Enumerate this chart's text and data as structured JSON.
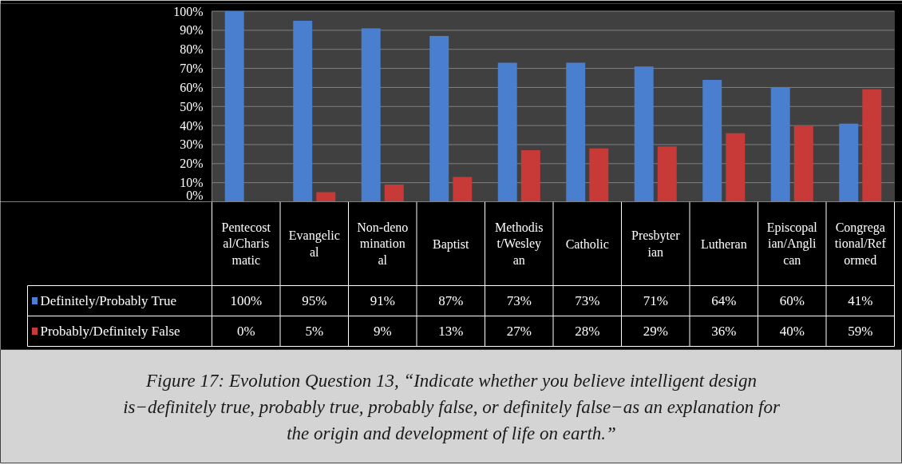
{
  "chart_data": {
    "type": "bar",
    "categories": [
      "Pentecostal/Charismatic",
      "Evangelical",
      "Non-denominational",
      "Baptist",
      "Methodist/Wesleyan",
      "Catholic",
      "Presbyterian",
      "Lutheran",
      "Episcopalian/Anglican",
      "Congregational/Reformed"
    ],
    "series": [
      {
        "name": "Definitely/Probably True",
        "color": "#4a7fd0",
        "values": [
          100,
          95,
          91,
          87,
          73,
          73,
          71,
          64,
          60,
          41
        ],
        "value_labels": [
          "100%",
          "95%",
          "91%",
          "87%",
          "73%",
          "73%",
          "71%",
          "64%",
          "60%",
          "41%"
        ]
      },
      {
        "name": "Probably/Definitely False",
        "color": "#c83a38",
        "values": [
          0,
          5,
          9,
          13,
          27,
          28,
          29,
          36,
          40,
          59
        ],
        "value_labels": [
          "0%",
          "5%",
          "9%",
          "13%",
          "27%",
          "28%",
          "29%",
          "36%",
          "40%",
          "59%"
        ]
      }
    ],
    "ylim": [
      0,
      100
    ],
    "yticks": [
      {
        "value": 0,
        "label": "0%"
      },
      {
        "value": 10,
        "label": "10%"
      },
      {
        "value": 20,
        "label": "20%"
      },
      {
        "value": 30,
        "label": "30%"
      },
      {
        "value": 40,
        "label": "40%"
      },
      {
        "value": 50,
        "label": "50%"
      },
      {
        "value": 60,
        "label": "60%"
      },
      {
        "value": 70,
        "label": "70%"
      },
      {
        "value": 80,
        "label": "80%"
      },
      {
        "value": 90,
        "label": "90%"
      },
      {
        "value": 100,
        "label": "100%"
      }
    ],
    "grid": "y",
    "legend": "bottom",
    "annotations": [
      "Figure 17: Evolution Question 13, “Indicate whether you believe intelligent design is−definitely true, probably true, probably false, or definitely false−as an explanation for the origin and development of life on earth.”"
    ]
  }
}
